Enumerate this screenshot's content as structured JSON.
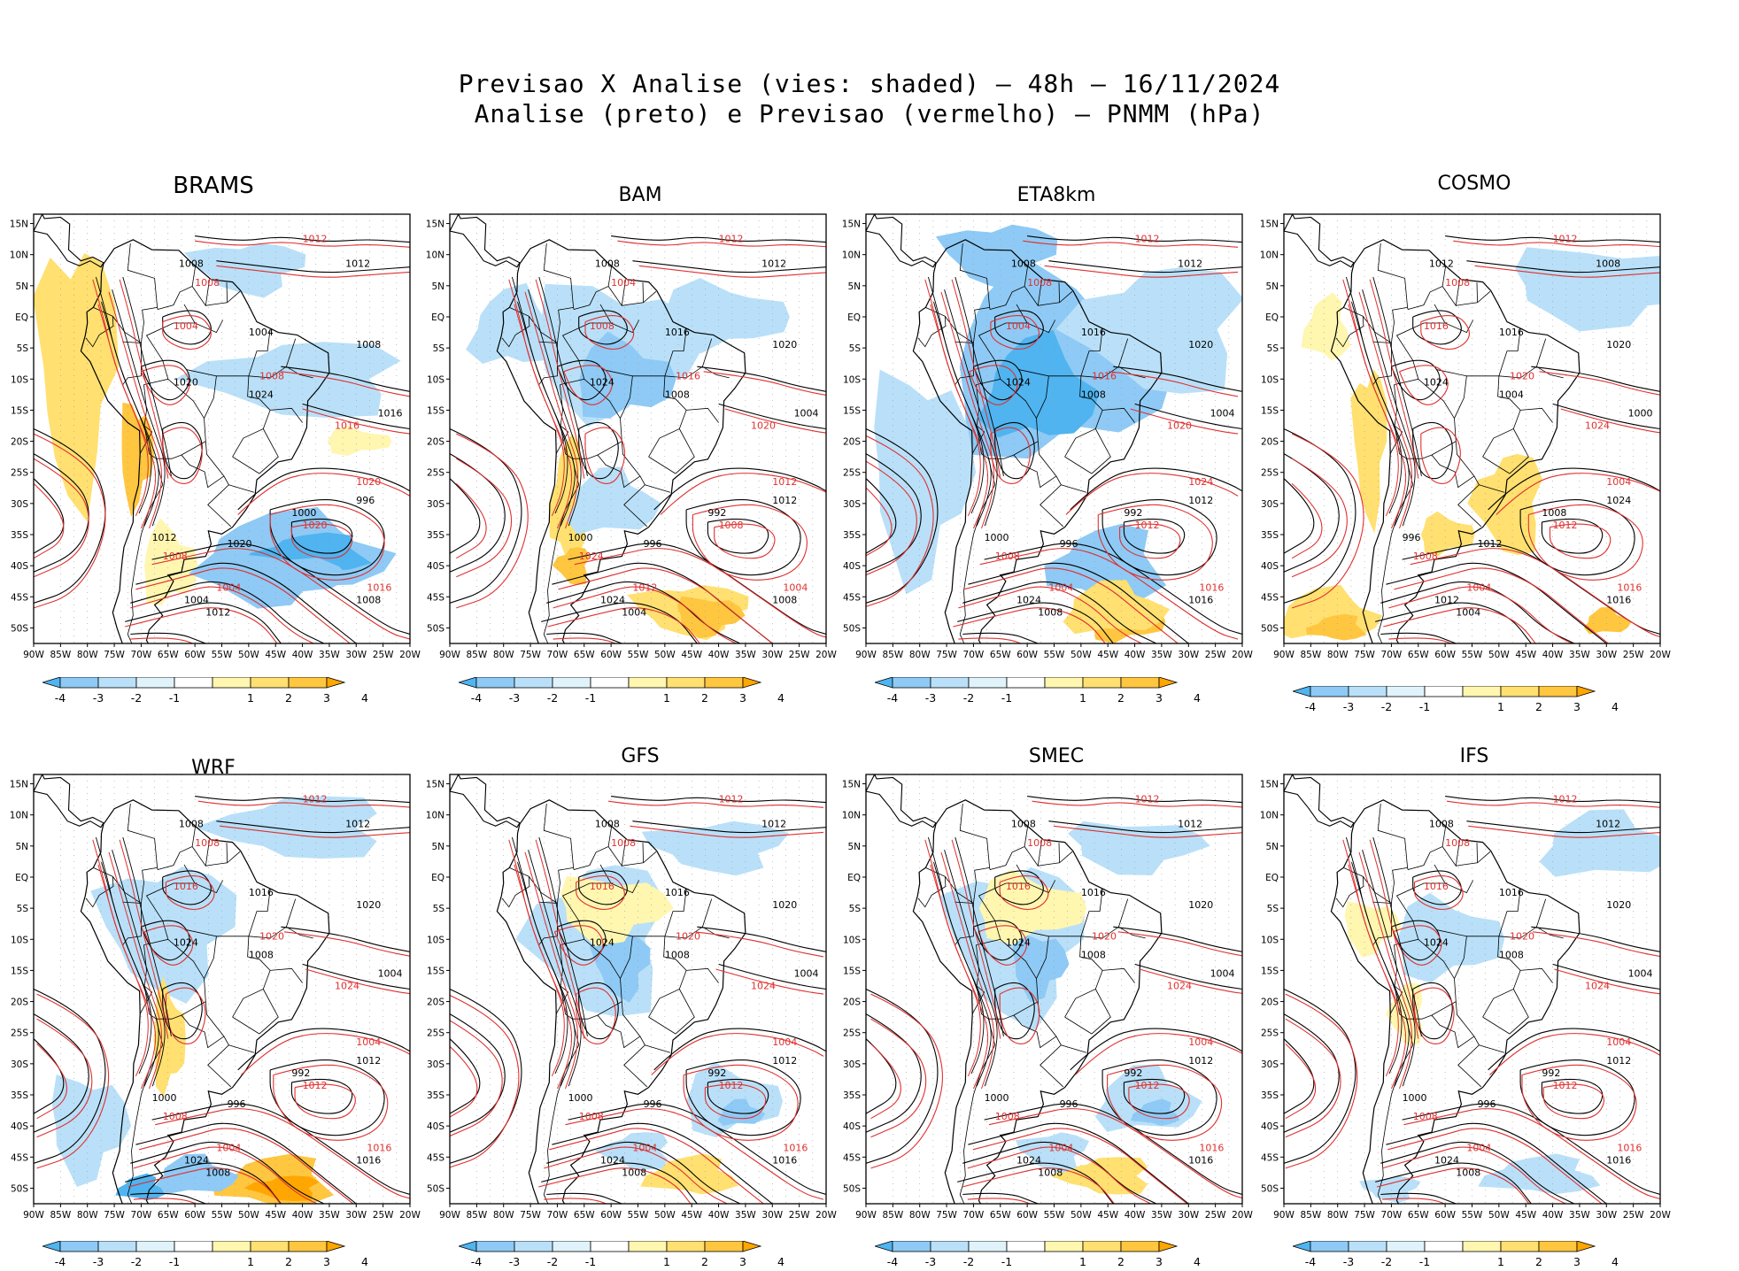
{
  "title_line1": "Previsao X Analise (vies: shaded) — 48h — 16/11/2024",
  "title_line2": "Analise (preto) e Previsao (vermelho) — PNMM (hPa)",
  "lat_labels": [
    "15N",
    "10N",
    "5N",
    "EQ",
    "5S",
    "10S",
    "15S",
    "20S",
    "25S",
    "30S",
    "35S",
    "40S",
    "45S",
    "50S"
  ],
  "lon_labels": [
    "90W",
    "85W",
    "80W",
    "75W",
    "70W",
    "65W",
    "60W",
    "55W",
    "50W",
    "45W",
    "40W",
    "35W",
    "30W",
    "25W",
    "20W"
  ],
  "colorbar": {
    "labels": [
      "-4",
      "-3",
      "-2",
      "-1",
      "1",
      "2",
      "3",
      "4"
    ],
    "colors": [
      "#4fb4f0",
      "#8ecaf5",
      "#b9e0f8",
      "#e0f3fb",
      "#ffffff",
      "#fff6b0",
      "#ffe070",
      "#ffc640",
      "#ffa600"
    ]
  },
  "contour_colors": {
    "analysis": "#000000",
    "forecast": "#e03030"
  },
  "panels": [
    {
      "name": "BRAMS",
      "bias": "warm-andes-cold-south",
      "black_labels": [
        "1008",
        "1012",
        "1004",
        "1008",
        "1020",
        "1024",
        "1016",
        "1012",
        "1020",
        "1000",
        "996",
        "1004",
        "1012",
        "1008"
      ],
      "red_labels": [
        "1012",
        "1008",
        "1004",
        "1008",
        "1016",
        "1020",
        "1008",
        "1020",
        "1016",
        "1004"
      ]
    },
    {
      "name": "BAM",
      "bias": "cold-continent",
      "black_labels": [
        "1008",
        "1012",
        "1016",
        "1020",
        "1024",
        "1008",
        "1004",
        "1000",
        "996",
        "992",
        "1012",
        "1024",
        "1004",
        "1008"
      ],
      "red_labels": [
        "1012",
        "1004",
        "1008",
        "1016",
        "1020",
        "1012",
        "1024",
        "1008",
        "1004",
        "1012"
      ]
    },
    {
      "name": "ETA8km",
      "bias": "cold-strong",
      "black_labels": [
        "1008",
        "1012",
        "1016",
        "1020",
        "1024",
        "1008",
        "1004",
        "1000",
        "996",
        "992",
        "1012",
        "1024",
        "1008",
        "1016"
      ],
      "red_labels": [
        "1012",
        "1008",
        "1004",
        "1016",
        "1020",
        "1024",
        "1008",
        "1012",
        "1016",
        "1004"
      ]
    },
    {
      "name": "COSMO",
      "bias": "warm-south",
      "black_labels": [
        "1012",
        "1008",
        "1016",
        "1020",
        "1024",
        "1004",
        "1000",
        "996",
        "1012",
        "1008",
        "1024",
        "1012",
        "1004",
        "1016"
      ],
      "red_labels": [
        "1012",
        "1008",
        "1016",
        "1020",
        "1024",
        "1004",
        "1008",
        "1012",
        "1016",
        "1004"
      ]
    },
    {
      "name": "WRF",
      "bias": "warm-southeast",
      "black_labels": [
        "1008",
        "1012",
        "1016",
        "1020",
        "1024",
        "1008",
        "1004",
        "1000",
        "996",
        "992",
        "1012",
        "1024",
        "1008",
        "1016"
      ],
      "red_labels": [
        "1012",
        "1008",
        "1016",
        "1020",
        "1024",
        "1004",
        "1008",
        "1012",
        "1016",
        "1004"
      ]
    },
    {
      "name": "GFS",
      "bias": "mixed-light",
      "black_labels": [
        "1008",
        "1012",
        "1016",
        "1020",
        "1024",
        "1008",
        "1004",
        "1000",
        "996",
        "992",
        "1012",
        "1024",
        "1008",
        "1016"
      ],
      "red_labels": [
        "1012",
        "1008",
        "1016",
        "1020",
        "1024",
        "1004",
        "1008",
        "1012",
        "1016",
        "1004"
      ]
    },
    {
      "name": "SMEC",
      "bias": "mixed-light",
      "black_labels": [
        "1008",
        "1012",
        "1016",
        "1020",
        "1024",
        "1008",
        "1004",
        "1000",
        "996",
        "992",
        "1012",
        "1024",
        "1008",
        "1016"
      ],
      "red_labels": [
        "1012",
        "1008",
        "1016",
        "1020",
        "1024",
        "1004",
        "1008",
        "1012",
        "1016",
        "1004"
      ]
    },
    {
      "name": "IFS",
      "bias": "minimal",
      "black_labels": [
        "1008",
        "1012",
        "1016",
        "1020",
        "1024",
        "1008",
        "1004",
        "1000",
        "996",
        "992",
        "1012",
        "1024",
        "1008",
        "1016"
      ],
      "red_labels": [
        "1012",
        "1008",
        "1016",
        "1020",
        "1024",
        "1004",
        "1008",
        "1012",
        "1016",
        "1004"
      ]
    }
  ]
}
